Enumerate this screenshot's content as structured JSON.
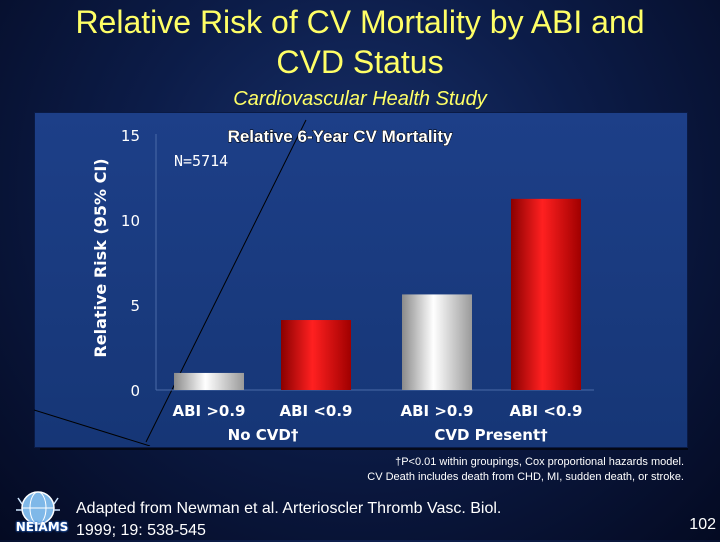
{
  "slide": {
    "title_line1": "Relative Risk of CV Mortality by ABI and",
    "title_line2": "CVD Status",
    "subtitle": "Cardiovascular Health Study",
    "footnote_line1": "†P<0.01 within groupings, Cox proportional hazards model.",
    "footnote_line2": "CV Death includes death from CHD, MI, sudden death, or stroke.",
    "logo_text": "NEIAMS",
    "citation_line1": "Adapted from Newman et al. Arterioscler Thromb Vasc. Biol.",
    "citation_line2": "1999; 19: 538-545",
    "page_number": "102"
  },
  "chart_data": {
    "type": "bar",
    "title": "Relative 6-Year CV Mortality",
    "annotation": "N=5714",
    "ylabel": "Relative Risk (95% CI)",
    "ylim": [
      0,
      15
    ],
    "yticks": [
      "0",
      "5",
      "10",
      "15"
    ],
    "categories": [
      "ABI >0.9",
      "ABI <0.9",
      "ABI >0.9",
      "ABI <0.9"
    ],
    "groups": [
      "No CVD†",
      "CVD Present†"
    ],
    "values": [
      1.0,
      4.1,
      5.6,
      11.2
    ],
    "bar_colors": [
      "silver",
      "red",
      "silver",
      "red"
    ]
  },
  "colors": {
    "background": "#0c1c48",
    "panel": "#1b3b80",
    "title": "#ffff66",
    "bar_silver": "#d8d8d8",
    "bar_red": "#d80000"
  }
}
